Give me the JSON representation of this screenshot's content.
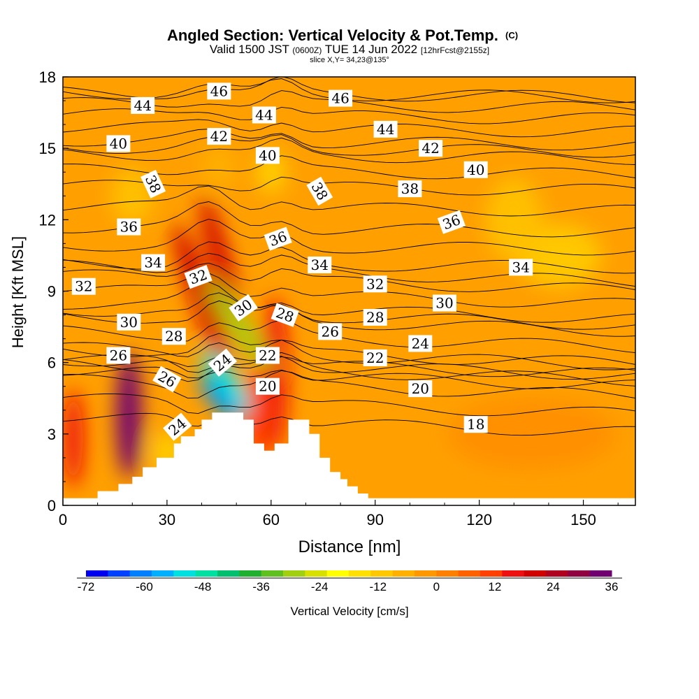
{
  "chart_data": {
    "type": "heatmap",
    "title": "Angled Section: Vertical Velocity & Pot.Temp.",
    "title_tag": "(C)",
    "subtitle_parts": [
      "Valid 1500 JST",
      "(0600Z)",
      "TUE 14 Jun 2022",
      "[12hrFcst@2155z]"
    ],
    "slice_label": "slice X,Y= 34,23@135°",
    "xlabel": "Distance [nm]",
    "ylabel": "Height [Kft MSL]",
    "xlim": [
      0,
      165
    ],
    "ylim": [
      0,
      18
    ],
    "x_ticks": [
      0,
      30,
      60,
      90,
      120,
      150
    ],
    "y_ticks": [
      0,
      3,
      6,
      9,
      12,
      15,
      18
    ],
    "colorbar": {
      "label": "Vertical Velocity [cm/s]",
      "ticks": [
        -72,
        -60,
        -48,
        -36,
        -24,
        -12,
        0,
        12,
        24,
        36
      ],
      "colors": [
        "#0000f0",
        "#0040ff",
        "#0080ff",
        "#00b0ff",
        "#00e0e0",
        "#00e0a0",
        "#00c070",
        "#20b030",
        "#60c020",
        "#a0d010",
        "#d8e000",
        "#ffff00",
        "#ffe000",
        "#ffc800",
        "#ffb000",
        "#ff9800",
        "#ff8000",
        "#ff6000",
        "#ff4000",
        "#ee1010",
        "#d00000",
        "#b00020",
        "#900040",
        "#700070"
      ]
    },
    "terrain_kft": [
      [
        0,
        0.3
      ],
      [
        10,
        0.3
      ],
      [
        10,
        0.6
      ],
      [
        16,
        0.6
      ],
      [
        16,
        0.9
      ],
      [
        20,
        0.9
      ],
      [
        20,
        1.2
      ],
      [
        23,
        1.2
      ],
      [
        23,
        1.6
      ],
      [
        27,
        1.6
      ],
      [
        27,
        2
      ],
      [
        32,
        2
      ],
      [
        32,
        2.6
      ],
      [
        34,
        2.6
      ],
      [
        34,
        2.9
      ],
      [
        38,
        2.9
      ],
      [
        38,
        3.2
      ],
      [
        40,
        3.2
      ],
      [
        40,
        3.6
      ],
      [
        43,
        3.6
      ],
      [
        43,
        3.9
      ],
      [
        52,
        3.9
      ],
      [
        52,
        3.6
      ],
      [
        55,
        3.6
      ],
      [
        55,
        2.6
      ],
      [
        58,
        2.6
      ],
      [
        58,
        2.3
      ],
      [
        61,
        2.3
      ],
      [
        61,
        2.6
      ],
      [
        65,
        2.6
      ],
      [
        65,
        3.6
      ],
      [
        71,
        3.6
      ],
      [
        71,
        3
      ],
      [
        74,
        3
      ],
      [
        74,
        2
      ],
      [
        77,
        2
      ],
      [
        77,
        1.4
      ],
      [
        80,
        1.4
      ],
      [
        80,
        1.1
      ],
      [
        82,
        1.1
      ],
      [
        82,
        0.8
      ],
      [
        85,
        0.8
      ],
      [
        85,
        0.5
      ],
      [
        88,
        0.5
      ],
      [
        88,
        0.3
      ],
      [
        165,
        0.3
      ]
    ],
    "velocity_features": [
      {
        "x": 19,
        "y": 3.8,
        "value": 32
      },
      {
        "x": 3,
        "y": 2.8,
        "value": 16
      },
      {
        "x": 40,
        "y": 8.8,
        "value": 22
      },
      {
        "x": 45,
        "y": 10.5,
        "value": 20
      },
      {
        "x": 61,
        "y": 5.5,
        "value": 14
      },
      {
        "x": 56,
        "y": 3.8,
        "value": 12
      },
      {
        "x": 47,
        "y": 5.2,
        "value": -52
      },
      {
        "x": 45,
        "y": 4.4,
        "value": -60
      },
      {
        "x": 51,
        "y": 7.5,
        "value": -28
      },
      {
        "x": 143,
        "y": 10.5,
        "value": -10
      },
      {
        "x": 45,
        "y": 14.2,
        "value": -9
      }
    ],
    "contour_labels": [
      {
        "text": "46",
        "x": 45,
        "y": 17.4,
        "angle": 0
      },
      {
        "text": "46",
        "x": 80,
        "y": 17.1,
        "angle": 0
      },
      {
        "text": "44",
        "x": 23,
        "y": 16.8,
        "angle": 0
      },
      {
        "text": "44",
        "x": 58,
        "y": 16.4,
        "angle": 0
      },
      {
        "text": "44",
        "x": 93,
        "y": 15.8,
        "angle": 0
      },
      {
        "text": "42",
        "x": 45,
        "y": 15.5,
        "angle": 0
      },
      {
        "text": "42",
        "x": 106,
        "y": 15
      },
      {
        "text": "40",
        "x": 16,
        "y": 15.2,
        "angle": 0
      },
      {
        "text": "40",
        "x": 59,
        "y": 14.7,
        "angle": 0
      },
      {
        "text": "40",
        "x": 119,
        "y": 14.1,
        "angle": 0
      },
      {
        "text": "38",
        "x": 26,
        "y": 13.5,
        "angle": 65
      },
      {
        "text": "38",
        "x": 74,
        "y": 13.2,
        "angle": 60
      },
      {
        "text": "38",
        "x": 100,
        "y": 13.3,
        "angle": 0
      },
      {
        "text": "36",
        "x": 19,
        "y": 11.7,
        "angle": 0
      },
      {
        "text": "36",
        "x": 62,
        "y": 11.2,
        "angle": -20
      },
      {
        "text": "36",
        "x": 112,
        "y": 11.9,
        "angle": -20
      },
      {
        "text": "34",
        "x": 26,
        "y": 10.2,
        "angle": 0
      },
      {
        "text": "34",
        "x": 74,
        "y": 10.1,
        "angle": 0
      },
      {
        "text": "34",
        "x": 132,
        "y": 10,
        "angle": 0
      },
      {
        "text": "32",
        "x": 6,
        "y": 9.2,
        "angle": 0
      },
      {
        "text": "32",
        "x": 39,
        "y": 9.6,
        "angle": -20
      },
      {
        "text": "32",
        "x": 90,
        "y": 9.3,
        "angle": 0
      },
      {
        "text": "30",
        "x": 19,
        "y": 7.7,
        "angle": 0
      },
      {
        "text": "30",
        "x": 52,
        "y": 8.3,
        "angle": -35
      },
      {
        "text": "30",
        "x": 110,
        "y": 8.5,
        "angle": 0
      },
      {
        "text": "28",
        "x": 32,
        "y": 7.1,
        "angle": 0
      },
      {
        "text": "28",
        "x": 64,
        "y": 8,
        "angle": 20
      },
      {
        "text": "28",
        "x": 90,
        "y": 7.9,
        "angle": 0
      },
      {
        "text": "26",
        "x": 16,
        "y": 6.3,
        "angle": 0
      },
      {
        "text": "26",
        "x": 77,
        "y": 7.3,
        "angle": 0
      },
      {
        "text": "26",
        "x": 30,
        "y": 5.3,
        "angle": 30
      },
      {
        "text": "24",
        "x": 46,
        "y": 6,
        "angle": -40
      },
      {
        "text": "24",
        "x": 103,
        "y": 6.8,
        "angle": 0
      },
      {
        "text": "24",
        "x": 33,
        "y": 3.3,
        "angle": -40
      },
      {
        "text": "22",
        "x": 59,
        "y": 6.3,
        "angle": 0
      },
      {
        "text": "22",
        "x": 90,
        "y": 6.2,
        "angle": 0
      },
      {
        "text": "20",
        "x": 59,
        "y": 5,
        "angle": 0
      },
      {
        "text": "20",
        "x": 103,
        "y": 4.9,
        "angle": 0
      },
      {
        "text": "18",
        "x": 119,
        "y": 3.4,
        "angle": 0
      }
    ]
  }
}
